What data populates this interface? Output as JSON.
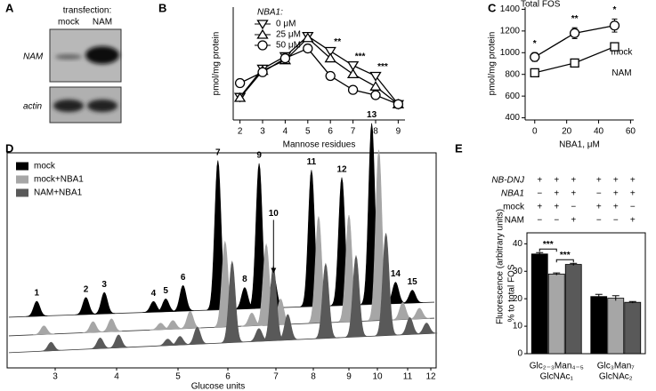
{
  "chart_data": [
    {
      "type": "blot",
      "panel": "A",
      "title": "transfection:",
      "lanes": [
        "mock",
        "NAM"
      ],
      "rows": [
        "NAM",
        "actin"
      ]
    },
    {
      "type": "line",
      "panel": "B",
      "xlabel": "Mannose residues",
      "ylabel": "pmol/mg protein",
      "legend_title": "NBA1:",
      "legend": "upper left",
      "x": [
        2,
        3,
        4,
        5,
        6,
        7,
        8,
        9
      ],
      "xlim": [
        1.7,
        9.3
      ],
      "xticks": [
        2,
        3,
        4,
        5,
        6,
        7,
        8,
        9
      ],
      "ylim": [
        0,
        300
      ],
      "series": [
        {
          "name": "0 μM",
          "marker": "triangle-down",
          "color": "#000000",
          "values": [
            61,
            136,
            169,
            223,
            183,
            145,
            117,
            42
          ]
        },
        {
          "name": "25 μM",
          "marker": "triangle-up",
          "color": "#000000",
          "values": [
            59,
            131,
            159,
            218,
            164,
            122,
            89,
            42
          ]
        },
        {
          "name": "50 μM",
          "marker": "circle",
          "color": "#000000",
          "values": [
            98,
            127,
            164,
            190,
            117,
            80,
            66,
            42
          ]
        }
      ],
      "annotations": [
        {
          "text": "**",
          "x": 6
        },
        {
          "text": "***",
          "x": 7
        },
        {
          "text": "***",
          "x": 8
        }
      ]
    },
    {
      "type": "line",
      "panel": "C",
      "title": "Total FOS",
      "xlabel": "NBA1, μM",
      "ylabel": "pmol/mg protein",
      "legend": "inline",
      "x": [
        0,
        25,
        50
      ],
      "xlim": [
        -6,
        62
      ],
      "xticks": [
        0,
        20,
        40,
        60
      ],
      "ylim": [
        380,
        1420
      ],
      "yticks": [
        400,
        600,
        800,
        1000,
        1200,
        1400
      ],
      "series": [
        {
          "name": "mock",
          "marker": "circle",
          "color": "#000000",
          "values": [
            960,
            1180,
            1250
          ],
          "errors": [
            40,
            50,
            60
          ]
        },
        {
          "name": "NAM",
          "marker": "square",
          "color": "#000000",
          "values": [
            815,
            905,
            1055
          ],
          "errors": [
            20,
            15,
            15
          ]
        }
      ],
      "annotations": [
        {
          "text": "*",
          "x": 0
        },
        {
          "text": "**",
          "x": 25
        },
        {
          "text": "*",
          "x": 50
        }
      ]
    },
    {
      "type": "chromatogram",
      "panel": "D",
      "xlabel": "Glucose units",
      "xlim": [
        2.3,
        12.2
      ],
      "xticks": [
        3,
        4,
        5,
        6,
        7,
        8,
        9,
        10,
        11,
        12
      ],
      "ylim": [
        0,
        100
      ],
      "peak_labels": [
        1,
        2,
        3,
        4,
        5,
        6,
        7,
        8,
        9,
        10,
        11,
        12,
        13,
        14,
        15
      ],
      "series": [
        {
          "name": "mock",
          "color": "#000000",
          "x": [
            2.7,
            3.5,
            3.8,
            4.6,
            4.8,
            5.1,
            5.8,
            6.35,
            6.65,
            6.95,
            7.95,
            8.8,
            9.8,
            10.6,
            11.2
          ],
          "values": [
            7,
            8,
            10,
            5,
            6,
            12,
            70,
            10,
            68,
            15,
            64,
            60,
            85,
            10,
            6
          ]
        },
        {
          "name": "mock+NBA1",
          "color": "#a6a6a6",
          "x": [
            2.7,
            3.5,
            3.8,
            4.6,
            4.8,
            5.1,
            5.8,
            6.35,
            6.65,
            6.95,
            7.95,
            8.8,
            9.8,
            10.6,
            11.2
          ],
          "values": [
            4,
            5,
            6,
            3,
            4,
            8,
            40,
            6,
            38,
            12,
            50,
            50,
            80,
            8,
            5
          ]
        },
        {
          "name": "NAM+NBA1",
          "color": "#595959",
          "x": [
            2.7,
            3.5,
            3.8,
            4.6,
            4.8,
            5.1,
            5.8,
            6.35,
            6.65,
            6.95,
            7.95,
            8.8,
            9.8,
            10.6,
            11.2
          ],
          "values": [
            4,
            5,
            6,
            3,
            4,
            8,
            38,
            6,
            35,
            12,
            35,
            38,
            48,
            8,
            5
          ]
        }
      ]
    },
    {
      "type": "grouped-bar",
      "panel": "E",
      "ylabel": "% to total FOS",
      "outer_ylabel": "Fluorescence (arbitrary units)",
      "conditions": [
        {
          "name": "NB-DNJ",
          "marks": [
            "+",
            "+",
            "+",
            "+",
            "+",
            "+"
          ]
        },
        {
          "name": "NBA1",
          "marks": [
            "−",
            "+",
            "+",
            "−",
            "+",
            "+"
          ]
        },
        {
          "name": "mock",
          "marks": [
            "+",
            "+",
            "−",
            "+",
            "+",
            "−"
          ]
        },
        {
          "name": "NAM",
          "marks": [
            "−",
            "−",
            "+",
            "−",
            "−",
            "+"
          ]
        }
      ],
      "categories": [
        [
          "Glc₂₋₃Man₄₋₅",
          "GlcNAc₁"
        ],
        [
          "Glc₃Man₇",
          "GlcNAc₂"
        ]
      ],
      "ylim": [
        0,
        44
      ],
      "yticks": [
        0,
        10,
        20,
        30,
        40
      ],
      "series": [
        {
          "color": "#000000",
          "values": [
            36.3,
            20.8
          ],
          "errors": [
            0.5,
            0.8
          ]
        },
        {
          "color": "#a6a6a6",
          "values": [
            29,
            20.2
          ],
          "errors": [
            0.4,
            0.9
          ]
        },
        {
          "color": "#595959",
          "values": [
            32.5,
            18.7
          ],
          "errors": [
            0.4,
            0.3
          ]
        }
      ],
      "annotations": [
        {
          "text": "***",
          "category": 0,
          "series": [
            0,
            1
          ]
        },
        {
          "text": "***",
          "category": 0,
          "series": [
            1,
            2
          ]
        }
      ]
    }
  ]
}
